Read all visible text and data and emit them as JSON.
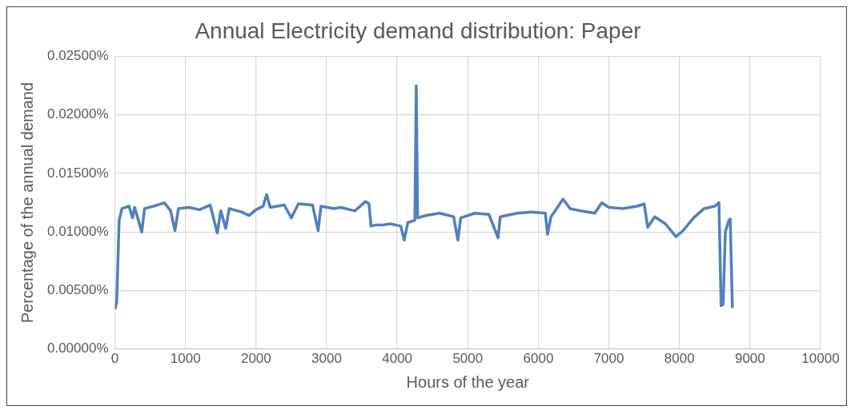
{
  "chart_data": {
    "type": "line",
    "title": "Annual Electricity demand distribution: Paper",
    "xlabel": "Hours of the year",
    "ylabel": "Percentage of the annual demand",
    "x": [
      0,
      25,
      60,
      100,
      200,
      250,
      280,
      380,
      420,
      550,
      700,
      790,
      850,
      900,
      1050,
      1200,
      1350,
      1450,
      1500,
      1570,
      1620,
      1800,
      1900,
      2000,
      2100,
      2150,
      2200,
      2400,
      2500,
      2600,
      2800,
      2880,
      2920,
      3100,
      3200,
      3400,
      3550,
      3600,
      3630,
      3700,
      3800,
      3900,
      4050,
      4100,
      4150,
      4250,
      4270,
      4290,
      4400,
      4600,
      4800,
      4860,
      4900,
      5100,
      5300,
      5430,
      5460,
      5700,
      5900,
      6100,
      6130,
      6180,
      6350,
      6450,
      6600,
      6800,
      6900,
      7000,
      7200,
      7400,
      7500,
      7550,
      7650,
      7800,
      7950,
      8050,
      8200,
      8350,
      8500,
      8560,
      8590,
      8620,
      8650,
      8700,
      8720,
      8750
    ],
    "series": [
      {
        "color": "#4f81bd",
        "values": [
          0.0034,
          0.004,
          0.011,
          0.012,
          0.0122,
          0.0112,
          0.0121,
          0.01,
          0.012,
          0.0122,
          0.0125,
          0.0118,
          0.0101,
          0.012,
          0.0121,
          0.0119,
          0.0123,
          0.0099,
          0.0118,
          0.0103,
          0.012,
          0.0117,
          0.0114,
          0.0119,
          0.0122,
          0.0132,
          0.0121,
          0.0123,
          0.0112,
          0.0124,
          0.0123,
          0.0101,
          0.0122,
          0.012,
          0.0121,
          0.0118,
          0.0126,
          0.0124,
          0.0105,
          0.0106,
          0.0106,
          0.0107,
          0.0105,
          0.0093,
          0.0108,
          0.011,
          0.0225,
          0.0112,
          0.0114,
          0.0116,
          0.0113,
          0.0093,
          0.0112,
          0.0116,
          0.0115,
          0.0095,
          0.0113,
          0.0116,
          0.0117,
          0.0116,
          0.0098,
          0.0113,
          0.0128,
          0.012,
          0.0118,
          0.0116,
          0.0125,
          0.0121,
          0.012,
          0.0122,
          0.0124,
          0.0104,
          0.0113,
          0.0107,
          0.0096,
          0.0101,
          0.0112,
          0.012,
          0.0122,
          0.0125,
          0.0037,
          0.0038,
          0.01,
          0.011,
          0.0111,
          0.0035
        ]
      }
    ],
    "xlim": [
      0,
      10000
    ],
    "xticks": [
      0,
      1000,
      2000,
      3000,
      4000,
      5000,
      6000,
      7000,
      8000,
      9000,
      10000
    ],
    "ylim": [
      0,
      0.025
    ],
    "yticks": [
      {
        "value": 0,
        "label": "0.00000%"
      },
      {
        "value": 0.005,
        "label": "0.00500%"
      },
      {
        "value": 0.01,
        "label": "0.01000%"
      },
      {
        "value": 0.015,
        "label": "0.01500%"
      },
      {
        "value": 0.02,
        "label": "0.02000%"
      },
      {
        "value": 0.025,
        "label": "0.02500%"
      }
    ],
    "grid": true,
    "legend": false,
    "marker": "none",
    "line_style": "solid"
  }
}
